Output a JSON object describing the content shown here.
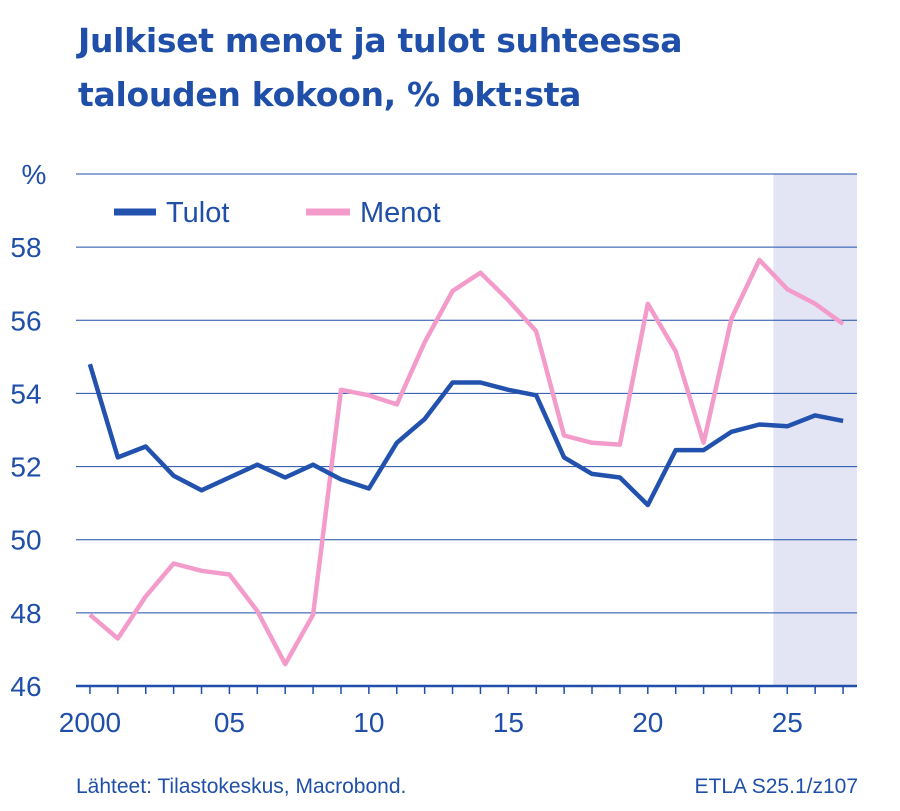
{
  "title_lines": [
    "Julkiset menot ja tulot suhteessa",
    "talouden kokoon, % bkt:sta"
  ],
  "colors": {
    "accent": "#1f4fa8",
    "tulot": "#2252ad",
    "menot": "#f39ccb",
    "forecast_shade": "#e3e5f4",
    "grid": "#1f4fa8"
  },
  "chart_data": {
    "type": "line",
    "title": "Julkiset menot ja tulot suhteessa talouden kokoon, % bkt:sta",
    "xlabel": "",
    "ylabel": "%",
    "ylim": [
      46,
      60
    ],
    "xlim": [
      1999.5,
      2027.5
    ],
    "yticks": [
      46,
      48,
      50,
      52,
      54,
      56,
      58
    ],
    "xtick_labels": [
      {
        "x": 2000,
        "label": "2000"
      },
      {
        "x": 2005,
        "label": "05"
      },
      {
        "x": 2010,
        "label": "10"
      },
      {
        "x": 2015,
        "label": "15"
      },
      {
        "x": 2020,
        "label": "20"
      },
      {
        "x": 2025,
        "label": "25"
      }
    ],
    "forecast_from": 2024.5,
    "grid": true,
    "legend_position": "top-left",
    "x": [
      2000,
      2001,
      2002,
      2003,
      2004,
      2005,
      2006,
      2007,
      2008,
      2009,
      2010,
      2011,
      2012,
      2013,
      2014,
      2015,
      2016,
      2017,
      2018,
      2019,
      2020,
      2021,
      2022,
      2023,
      2024,
      2025,
      2026,
      2027
    ],
    "series": [
      {
        "name": "Tulot",
        "color": "#2252ad",
        "values": [
          54.8,
          52.25,
          52.55,
          51.75,
          51.35,
          51.7,
          52.05,
          51.7,
          52.05,
          51.65,
          51.4,
          52.65,
          53.3,
          54.3,
          54.3,
          54.1,
          53.95,
          52.25,
          51.8,
          51.7,
          50.95,
          52.45,
          52.45,
          52.95,
          53.15,
          53.1,
          53.4,
          53.25
        ]
      },
      {
        "name": "Menot",
        "color": "#f39ccb",
        "values": [
          47.95,
          47.3,
          48.45,
          49.35,
          49.15,
          49.05,
          48.05,
          46.6,
          47.95,
          54.1,
          53.95,
          53.7,
          55.4,
          56.8,
          57.3,
          56.55,
          55.7,
          52.85,
          52.65,
          52.6,
          56.45,
          55.15,
          52.65,
          56.05,
          57.65,
          56.85,
          56.45,
          55.9
        ]
      }
    ]
  },
  "footer": {
    "source": "Lähteet:   Tilastokeskus, Macrobond.",
    "code": "ETLA S25.1/z107"
  }
}
